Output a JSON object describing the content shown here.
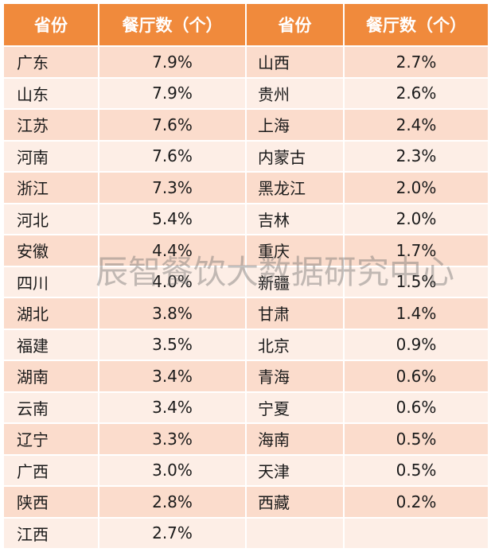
{
  "headers": [
    "省份",
    "餐厅数（个）",
    "省份",
    "餐厅数（个）"
  ],
  "rows": [
    [
      "广东",
      "7.9%",
      "山西",
      "2.7%"
    ],
    [
      "山东",
      "7.9%",
      "贵州",
      "2.6%"
    ],
    [
      "江苏",
      "7.6%",
      "上海",
      "2.4%"
    ],
    [
      "河南",
      "7.6%",
      "内蒙古",
      "2.3%"
    ],
    [
      "浙江",
      "7.3%",
      "黑龙江",
      "2.0%"
    ],
    [
      "河北",
      "5.4%",
      "吉林",
      "2.0%"
    ],
    [
      "安徽",
      "4.4%",
      "重庆",
      "1.7%"
    ],
    [
      "四川",
      "4.0%",
      "新疆",
      "1.5%"
    ],
    [
      "湖北",
      "3.8%",
      "甘肃",
      "1.4%"
    ],
    [
      "福建",
      "3.5%",
      "北京",
      "0.9%"
    ],
    [
      "湖南",
      "3.4%",
      "青海",
      "0.6%"
    ],
    [
      "云南",
      "3.4%",
      "宁夏",
      "0.6%"
    ],
    [
      "辽宁",
      "3.3%",
      "海南",
      "0.5%"
    ],
    [
      "广西",
      "3.0%",
      "天津",
      "0.5%"
    ],
    [
      "陕西",
      "2.8%",
      "西藏",
      "0.2%"
    ],
    [
      "江西",
      "2.7%",
      "",
      ""
    ]
  ],
  "watermark": "辰智餐饮大数据研究中心",
  "colors": {
    "header": "#f08a3c",
    "row_odd": "#fbdccc",
    "row_even": "#fdeee6"
  }
}
